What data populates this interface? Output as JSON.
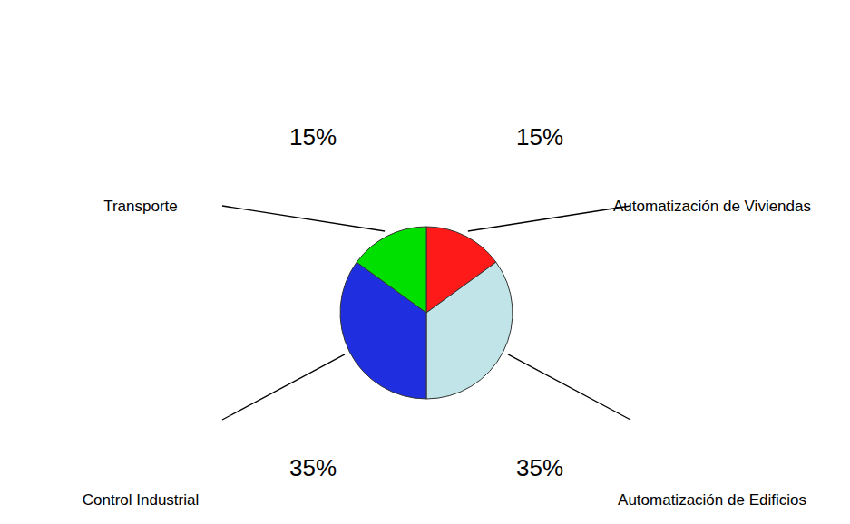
{
  "chart_data": {
    "type": "pie",
    "categories": [
      "Automatización de Viviendas",
      "Automatización de Edificios",
      "Control Industrial",
      "Transporte"
    ],
    "values": [
      15,
      35,
      35,
      15
    ],
    "value_labels": [
      "15%",
      "35%",
      "35%",
      "15%"
    ],
    "colors": [
      "#ff1a1a",
      "#c0e4e8",
      "#1f2fe0",
      "#00e000"
    ]
  }
}
